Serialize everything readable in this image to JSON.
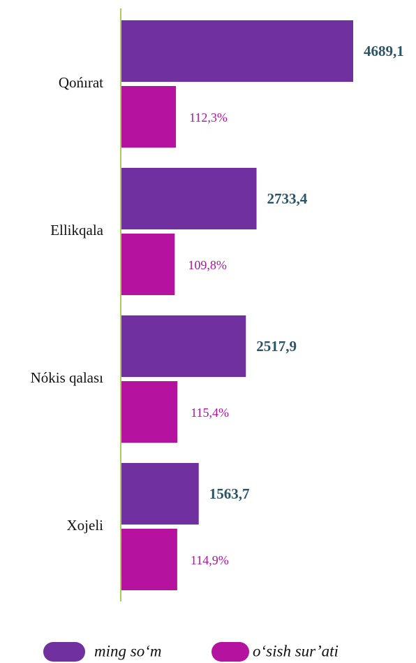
{
  "chart_data": {
    "type": "bar",
    "orientation": "horizontal",
    "categories": [
      "Qońırat",
      "Ellikqala",
      "Nókis qalası",
      "Xojeli"
    ],
    "series": [
      {
        "name": "ming so‘m",
        "color": "#7030a0",
        "values": [
          4689.1,
          2733.4,
          2517.9,
          1563.7
        ],
        "value_labels": [
          "4689,1",
          "2733,4",
          "2517,9",
          "1563,7"
        ]
      },
      {
        "name": "o‘sish sur’ati",
        "color": "#b5139f",
        "axis": "x2",
        "values": [
          112.3,
          109.8,
          115.4,
          114.9
        ],
        "value_labels": [
          "112,3%",
          "109,8%",
          "115,4%",
          "114,9%"
        ]
      }
    ],
    "xlim": [
      0,
      5960
    ],
    "x2lim": [
      0,
      607
    ],
    "legend": "bottom"
  }
}
